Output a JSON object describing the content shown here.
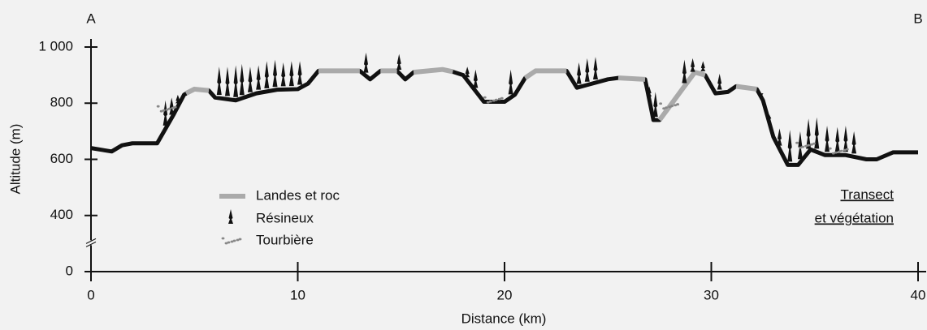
{
  "chart_data": {
    "type": "line",
    "xlabel": "Distance (km)",
    "ylabel": "Altitude (m)",
    "xlim": [
      0,
      40
    ],
    "xticks": [
      0,
      10,
      20,
      30,
      40
    ],
    "ylim": [
      0,
      1000
    ],
    "y_break": [
      0,
      400
    ],
    "yticks": [
      0,
      400,
      600,
      800,
      {
        "value": 1000,
        "label": "1 000"
      }
    ],
    "annotations": {
      "start": "A",
      "end": "B",
      "caption": [
        "Transect",
        "et végétation"
      ]
    },
    "series": [
      {
        "color": "#111111",
        "x": [
          0,
          1,
          1.5,
          2,
          3.2,
          4,
          4.5,
          5,
          5.7,
          6,
          7,
          8,
          9,
          10,
          10.5,
          11,
          13,
          13.5,
          14,
          14.8,
          15.2,
          15.6,
          17,
          17.5,
          18,
          19,
          20,
          20.5,
          21,
          21.5,
          23,
          23.5,
          24,
          25,
          25.5,
          26.8,
          27.2,
          27.5,
          28.5,
          29.2,
          29.7,
          30.2,
          30.8,
          31.2,
          32.2,
          32.5,
          33,
          33.7,
          34.2,
          34.8,
          35.5,
          36.5,
          37.5,
          38,
          38.8,
          40
        ],
        "values": [
          640,
          628,
          650,
          657,
          657,
          760,
          830,
          850,
          845,
          820,
          810,
          835,
          848,
          850,
          870,
          915,
          915,
          885,
          915,
          915,
          885,
          910,
          920,
          912,
          900,
          805,
          805,
          830,
          890,
          915,
          915,
          855,
          865,
          885,
          890,
          885,
          740,
          740,
          840,
          910,
          900,
          835,
          840,
          860,
          850,
          810,
          680,
          580,
          580,
          635,
          615,
          615,
          600,
          600,
          625,
          625
        ]
      },
      {
        "name": "Landes et roc",
        "color": "#aaaaaa",
        "x": [
          4.6,
          5,
          5.7,
          null,
          11,
          13,
          null,
          14,
          14.8,
          null,
          15.6,
          17,
          17.5,
          null,
          21,
          21.5,
          23,
          null,
          25.5,
          26.8,
          null,
          27.5,
          28.5,
          29.2,
          29.7,
          null,
          31.2,
          32.2
        ],
        "values": [
          835,
          850,
          845,
          null,
          915,
          915,
          null,
          915,
          915,
          null,
          910,
          920,
          912,
          null,
          890,
          915,
          915,
          null,
          890,
          885,
          null,
          740,
          840,
          910,
          900,
          null,
          860,
          850
        ]
      },
      {
        "name": "Résineux",
        "color": "#111111",
        "x": [
          3.6,
          3.9,
          4.2,
          6.2,
          6.6,
          7,
          7.3,
          7.7,
          8.1,
          8.5,
          8.9,
          9.3,
          9.7,
          10.1,
          13.3,
          14.9,
          18.2,
          18.6,
          20.3,
          23.6,
          24,
          24.4,
          27,
          27.3,
          28.7,
          29.1,
          29.6,
          30.4,
          32.4,
          32.8,
          33.3,
          33.8,
          34.3,
          34.7,
          35.1,
          35.6,
          36.1,
          36.5,
          36.9
        ],
        "values": [
          810,
          820,
          830,
          930,
          930,
          935,
          940,
          930,
          935,
          950,
          955,
          945,
          950,
          950,
          980,
          975,
          930,
          920,
          920,
          945,
          960,
          965,
          860,
          840,
          955,
          960,
          950,
          905,
          830,
          760,
          710,
          705,
          700,
          745,
          750,
          720,
          715,
          720,
          700
        ]
      },
      {
        "name": "Tourbière",
        "color": "#888888",
        "x": [
          3.7,
          19.5,
          28,
          34.6,
          36.2
        ],
        "values": [
          780,
          812,
          790,
          650,
          630
        ]
      }
    ]
  }
}
